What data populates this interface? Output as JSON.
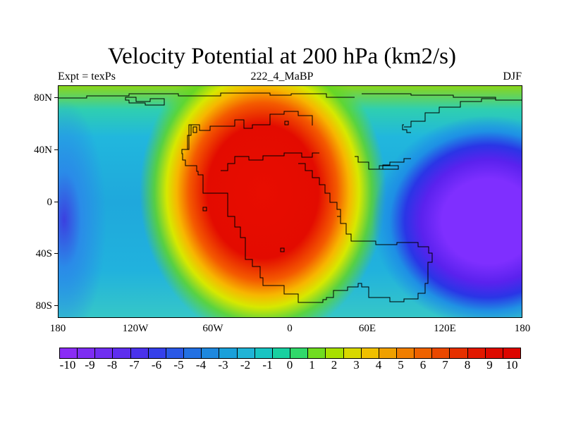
{
  "title": "Velocity Potential at 200 hPa (km2/s)",
  "subtitle_left": "Expt = texPs",
  "subtitle_center": "222_4_MaBP",
  "subtitle_right": "DJF",
  "lat_labels": [
    "80N",
    "40N",
    "0",
    "40S",
    "80S"
  ],
  "lon_labels": [
    "180",
    "120W",
    "60W",
    "0",
    "60E",
    "120E",
    "180"
  ],
  "colorbar": {
    "labels": [
      "-10",
      "-9",
      "-8",
      "-7",
      "-6",
      "-5",
      "-4",
      "-3",
      "-2",
      "-1",
      "0",
      "1",
      "2",
      "3",
      "4",
      "5",
      "6",
      "7",
      "8",
      "9",
      "10"
    ],
    "colors": [
      "#8a2cf5",
      "#7d2df2",
      "#6f2ef0",
      "#5e2eee",
      "#4a32ec",
      "#3540ea",
      "#2a58e6",
      "#2270e2",
      "#1e88de",
      "#1aa0da",
      "#20b4d6",
      "#18c4c2",
      "#18d0a0",
      "#30d86a",
      "#70dc20",
      "#a8e000",
      "#d8d800",
      "#f0c000",
      "#f0a000",
      "#f07e00",
      "#ee6200",
      "#ea4800",
      "#e63000",
      "#e21800",
      "#de0a00",
      "#dd0500"
    ]
  },
  "colors": {
    "max_positive": "#e30b00",
    "min_negative": "#7f2fff"
  }
}
